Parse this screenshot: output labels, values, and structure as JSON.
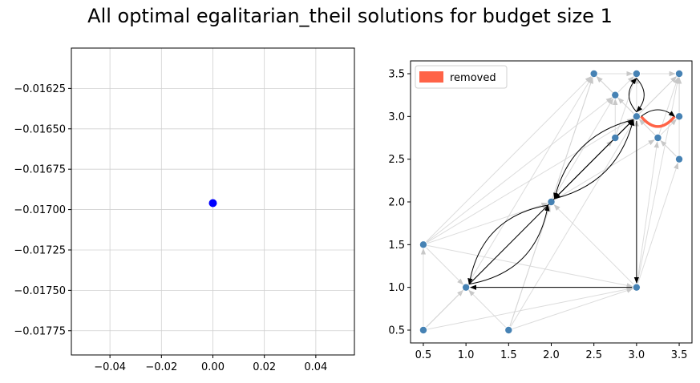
{
  "figure": {
    "title": "All optimal egalitarian_theil solutions for budget size 1"
  },
  "chart_data": [
    {
      "type": "scatter",
      "title": "",
      "xlabel": "",
      "ylabel": "",
      "xlim": [
        -0.055,
        0.055
      ],
      "ylim": [
        -0.0179,
        -0.016
      ],
      "grid": true,
      "x_ticks": [
        -0.04,
        -0.02,
        0.0,
        0.02,
        0.04
      ],
      "x_tick_labels": [
        "−0.04",
        "−0.02",
        "0.00",
        "0.02",
        "0.04"
      ],
      "y_ticks": [
        -0.01625,
        -0.0165,
        -0.01675,
        -0.017,
        -0.01725,
        -0.0175,
        -0.01775
      ],
      "y_tick_labels": [
        "−0.01625",
        "−0.01650",
        "−0.01675",
        "−0.01700",
        "−0.01725",
        "−0.01750",
        "−0.01775"
      ],
      "point_color": "#0000ff",
      "points": [
        {
          "x": 0.0,
          "y": -0.01696
        }
      ]
    },
    {
      "type": "network",
      "title": "",
      "xlabel": "",
      "ylabel": "",
      "xlim": [
        0.35,
        3.65
      ],
      "ylim": [
        0.35,
        3.65
      ],
      "grid": false,
      "x_ticks": [
        0.5,
        1.0,
        1.5,
        2.0,
        2.5,
        3.0,
        3.5
      ],
      "x_tick_labels": [
        "0.5",
        "1.0",
        "1.5",
        "2.0",
        "2.5",
        "3.0",
        "3.5"
      ],
      "y_ticks": [
        0.5,
        1.0,
        1.5,
        2.0,
        2.5,
        3.0,
        3.5
      ],
      "y_tick_labels": [
        "0.5",
        "1.0",
        "1.5",
        "2.0",
        "2.5",
        "3.0",
        "3.5"
      ],
      "legend": {
        "location": "upper-left",
        "entries": [
          {
            "label": "removed",
            "color": "#ff6347"
          }
        ]
      },
      "node_color": "#4682b4",
      "background_edge_color": "#d3d3d3",
      "highlight_edge_color": "#000000",
      "removed_edge_color": "#ff6347",
      "nodes": [
        {
          "x": 0.5,
          "y": 0.5
        },
        {
          "x": 1.5,
          "y": 0.5
        },
        {
          "x": 0.5,
          "y": 1.5
        },
        {
          "x": 1.0,
          "y": 1.0
        },
        {
          "x": 3.0,
          "y": 1.0
        },
        {
          "x": 2.0,
          "y": 2.0
        },
        {
          "x": 3.5,
          "y": 2.5
        },
        {
          "x": 2.75,
          "y": 2.75
        },
        {
          "x": 3.25,
          "y": 2.75
        },
        {
          "x": 3.0,
          "y": 3.0
        },
        {
          "x": 3.5,
          "y": 3.0
        },
        {
          "x": 2.75,
          "y": 3.25
        },
        {
          "x": 2.5,
          "y": 3.5
        },
        {
          "x": 3.0,
          "y": 3.5
        },
        {
          "x": 3.5,
          "y": 3.5
        }
      ],
      "background_edges": [
        [
          0,
          3
        ],
        [
          0,
          2
        ],
        [
          0,
          5
        ],
        [
          0,
          9
        ],
        [
          1,
          3
        ],
        [
          1,
          5
        ],
        [
          1,
          4
        ],
        [
          1,
          9
        ],
        [
          1,
          12
        ],
        [
          2,
          3
        ],
        [
          2,
          4
        ],
        [
          2,
          5
        ],
        [
          2,
          9
        ],
        [
          2,
          12
        ],
        [
          2,
          11
        ],
        [
          3,
          5
        ],
        [
          3,
          9
        ],
        [
          3,
          7
        ],
        [
          3,
          12
        ],
        [
          4,
          5
        ],
        [
          4,
          9
        ],
        [
          4,
          6
        ],
        [
          4,
          8
        ],
        [
          4,
          14
        ],
        [
          5,
          9
        ],
        [
          5,
          12
        ],
        [
          5,
          11
        ],
        [
          5,
          7
        ],
        [
          5,
          8
        ],
        [
          5,
          14
        ],
        [
          6,
          9
        ],
        [
          6,
          8
        ],
        [
          6,
          14
        ],
        [
          7,
          9
        ],
        [
          7,
          11
        ],
        [
          7,
          13
        ],
        [
          8,
          9
        ],
        [
          8,
          10
        ],
        [
          8,
          14
        ],
        [
          9,
          11
        ],
        [
          9,
          12
        ],
        [
          9,
          13
        ],
        [
          9,
          14
        ],
        [
          10,
          14
        ],
        [
          11,
          12
        ],
        [
          11,
          13
        ],
        [
          12,
          13
        ],
        [
          13,
          14
        ],
        [
          0,
          4
        ],
        [
          3,
          4
        ]
      ],
      "highlighted_edges": [
        {
          "from": [
            3.0,
            3.0
          ],
          "to": [
            2.0,
            2.0
          ],
          "rad": 0.0
        },
        {
          "from": [
            2.0,
            2.0
          ],
          "to": [
            3.0,
            3.0
          ],
          "rad": -0.3
        },
        {
          "from": [
            3.0,
            3.0
          ],
          "to": [
            2.0,
            2.0
          ],
          "rad": -0.3
        },
        {
          "from": [
            1.0,
            1.0
          ],
          "to": [
            3.0,
            3.0
          ],
          "rad": 0.0
        },
        {
          "from": [
            1.0,
            1.0
          ],
          "to": [
            2.0,
            2.0
          ],
          "rad": -0.35
        },
        {
          "from": [
            2.0,
            2.0
          ],
          "to": [
            1.0,
            1.0
          ],
          "rad": -0.35
        },
        {
          "from": [
            3.0,
            1.0
          ],
          "to": [
            1.0,
            1.0
          ],
          "rad": 0.0
        },
        {
          "from": [
            3.0,
            3.0
          ],
          "to": [
            3.0,
            1.0
          ],
          "rad": 0.0
        },
        {
          "from": [
            3.0,
            3.0
          ],
          "to": [
            3.5,
            3.0
          ],
          "rad": 0.4
        },
        {
          "from": [
            3.0,
            3.0
          ],
          "to": [
            3.0,
            3.5
          ],
          "rad": 0.45
        },
        {
          "from": [
            3.0,
            3.5
          ],
          "to": [
            3.0,
            3.0
          ],
          "rad": 0.45
        }
      ],
      "removed_edges": [
        {
          "from": [
            3.5,
            3.0
          ],
          "to": [
            3.0,
            3.0
          ],
          "rad": 0.6
        }
      ]
    }
  ]
}
